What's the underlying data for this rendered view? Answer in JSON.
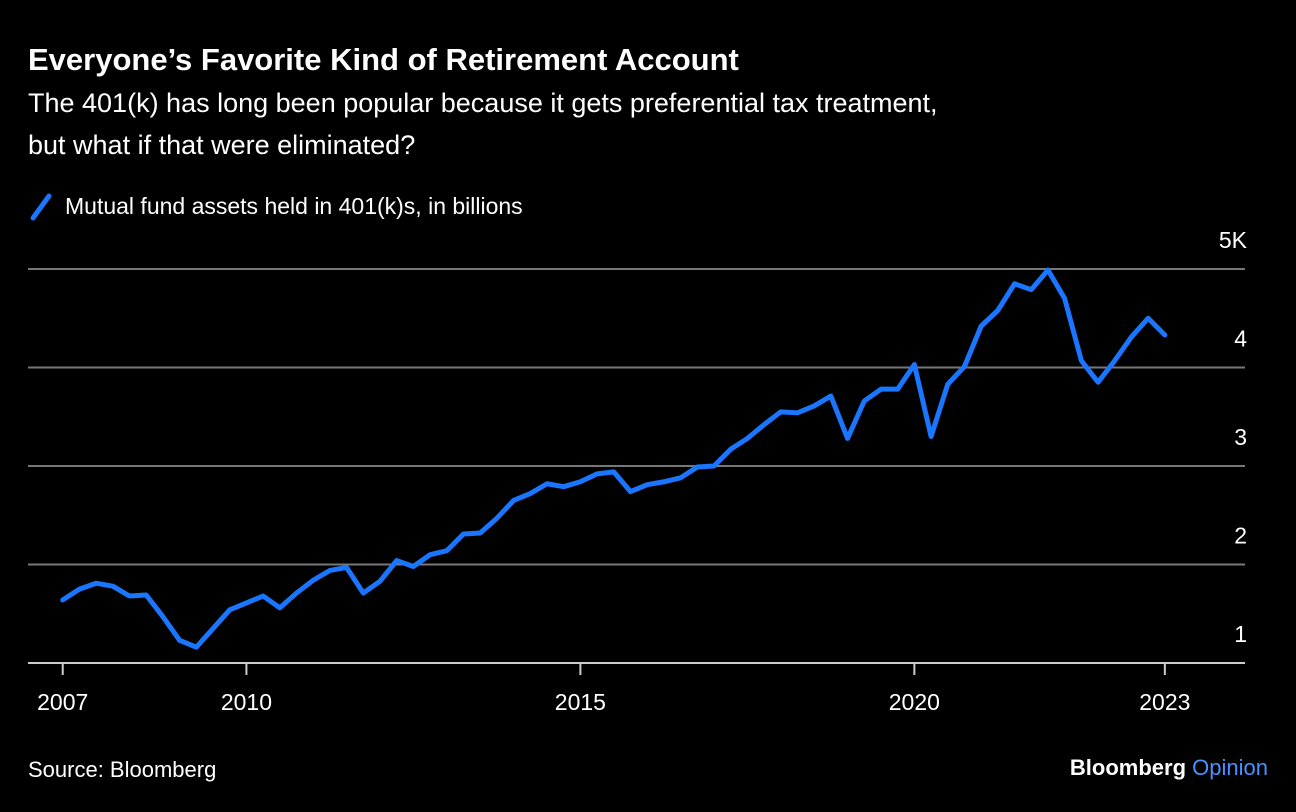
{
  "chart_data": {
    "type": "line",
    "title": "Everyone’s Favorite Kind of Retirement Account",
    "subtitle": [
      "The 401(k) has long been popular because it gets preferential tax treatment,",
      "but what if that were eliminated?"
    ],
    "source": "Source: Bloomberg",
    "brand": [
      "Bloomberg",
      "Opinion"
    ],
    "x": [
      2007.25,
      2007.5,
      2007.75,
      2008,
      2008.25,
      2008.5,
      2008.75,
      2009,
      2009.25,
      2009.5,
      2009.75,
      2010,
      2010.25,
      2010.5,
      2010.75,
      2011,
      2011.25,
      2011.5,
      2011.75,
      2012,
      2012.25,
      2012.5,
      2012.75,
      2013,
      2013.25,
      2013.5,
      2013.75,
      2014,
      2014.25,
      2014.5,
      2014.75,
      2015,
      2015.25,
      2015.5,
      2015.75,
      2016,
      2016.25,
      2016.5,
      2016.75,
      2017,
      2017.25,
      2017.5,
      2017.75,
      2018,
      2018.25,
      2018.5,
      2018.75,
      2019,
      2019.25,
      2019.5,
      2019.75,
      2020,
      2020.25,
      2020.5,
      2020.75,
      2021,
      2021.25,
      2021.5,
      2021.75,
      2022,
      2022.25,
      2022.5,
      2022.75,
      2023,
      2023.25,
      2023.5,
      2023.75
    ],
    "series": [
      {
        "name": "Mutual fund assets held in 401(k)s, in billions",
        "color": "#1a75ff",
        "values": [
          1.64,
          1.75,
          1.81,
          1.78,
          1.68,
          1.69,
          1.47,
          1.23,
          1.16,
          1.35,
          1.54,
          1.61,
          1.68,
          1.56,
          1.71,
          1.84,
          1.94,
          1.97,
          1.71,
          1.83,
          2.04,
          1.98,
          2.1,
          2.14,
          2.31,
          2.32,
          2.47,
          2.65,
          2.72,
          2.82,
          2.79,
          2.84,
          2.92,
          2.94,
          2.74,
          2.81,
          2.84,
          2.88,
          2.99,
          3.0,
          3.17,
          3.28,
          3.42,
          3.55,
          3.54,
          3.61,
          3.71,
          3.28,
          3.66,
          3.78,
          3.78,
          4.03,
          3.3,
          3.83,
          4.01,
          4.42,
          4.58,
          4.85,
          4.79,
          4.99,
          4.7,
          4.07,
          3.85,
          4.07,
          4.31,
          4.5,
          4.33
        ]
      }
    ],
    "xlim": [
      2006.73,
      2024.95
    ],
    "xticks": [
      {
        "value": 2007.25,
        "label": "2007"
      },
      2010,
      2015,
      2020,
      {
        "value": 2023.75,
        "label": "2023"
      }
    ],
    "ylim": [
      1,
      5
    ],
    "yticks": [
      1,
      2,
      3,
      4,
      {
        "value": 5,
        "label": "5K"
      }
    ],
    "grid": true
  }
}
